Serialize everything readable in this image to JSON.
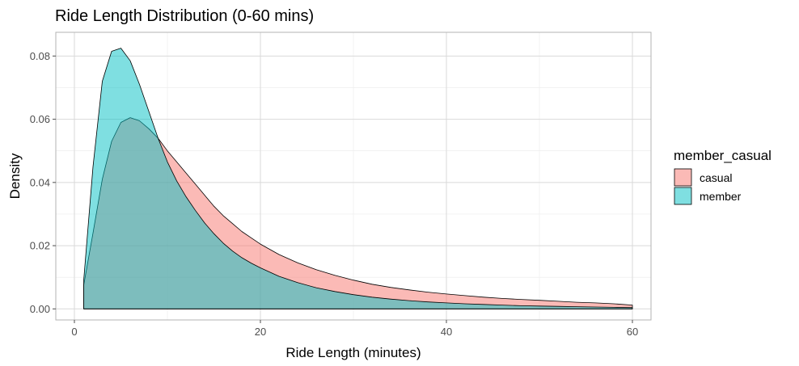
{
  "chart_data": {
    "type": "area",
    "title": "Ride Length Distribution (0-60 mins)",
    "xlabel": "Ride Length (minutes)",
    "ylabel": "Density",
    "xlim": [
      -2,
      62
    ],
    "ylim": [
      -0.0035,
      0.0875
    ],
    "x_ticks": [
      "0",
      "20",
      "40",
      "60"
    ],
    "x_tick_values": [
      0,
      20,
      40,
      60
    ],
    "y_ticks": [
      "0.00",
      "0.02",
      "0.04",
      "0.06",
      "0.08"
    ],
    "y_tick_values": [
      0,
      0.02,
      0.04,
      0.06,
      0.08
    ],
    "grid": true,
    "legend": {
      "title": "member_casual",
      "position": "right",
      "entries": [
        "casual",
        "member"
      ]
    },
    "series": [
      {
        "name": "casual",
        "color": "#F8766D",
        "x": [
          1,
          2,
          3,
          4,
          5,
          6,
          7,
          8,
          9,
          10,
          11,
          12,
          13,
          14,
          15,
          16,
          17,
          18,
          19,
          20,
          22,
          24,
          26,
          28,
          30,
          32,
          34,
          36,
          38,
          40,
          42,
          44,
          46,
          48,
          50,
          52,
          54,
          56,
          58,
          60
        ],
        "values": [
          0.0075,
          0.024,
          0.041,
          0.053,
          0.059,
          0.0605,
          0.0595,
          0.057,
          0.054,
          0.05,
          0.0465,
          0.043,
          0.0395,
          0.036,
          0.0325,
          0.0295,
          0.027,
          0.0245,
          0.0225,
          0.0205,
          0.0172,
          0.0146,
          0.0124,
          0.0106,
          0.0091,
          0.0078,
          0.0068,
          0.006,
          0.0053,
          0.0047,
          0.0042,
          0.0037,
          0.0033,
          0.003,
          0.0027,
          0.0024,
          0.0021,
          0.0019,
          0.0016,
          0.0012
        ]
      },
      {
        "name": "member",
        "color": "#00BFC4",
        "x": [
          1,
          2,
          3,
          4,
          5,
          6,
          7,
          8,
          9,
          10,
          11,
          12,
          13,
          14,
          15,
          16,
          17,
          18,
          19,
          20,
          22,
          24,
          26,
          28,
          30,
          32,
          34,
          36,
          38,
          40,
          42,
          44,
          46,
          48,
          50,
          52,
          54,
          56,
          58,
          60
        ],
        "values": [
          0.009,
          0.045,
          0.072,
          0.0815,
          0.0825,
          0.0785,
          0.071,
          0.0625,
          0.054,
          0.0465,
          0.0405,
          0.0355,
          0.0312,
          0.0272,
          0.0238,
          0.0208,
          0.0183,
          0.0162,
          0.0145,
          0.013,
          0.0103,
          0.0083,
          0.0067,
          0.0055,
          0.0045,
          0.0037,
          0.0031,
          0.0026,
          0.0022,
          0.0019,
          0.0016,
          0.0014,
          0.0012,
          0.001,
          0.0009,
          0.0008,
          0.0007,
          0.0006,
          0.0005,
          0.0004
        ]
      }
    ]
  }
}
